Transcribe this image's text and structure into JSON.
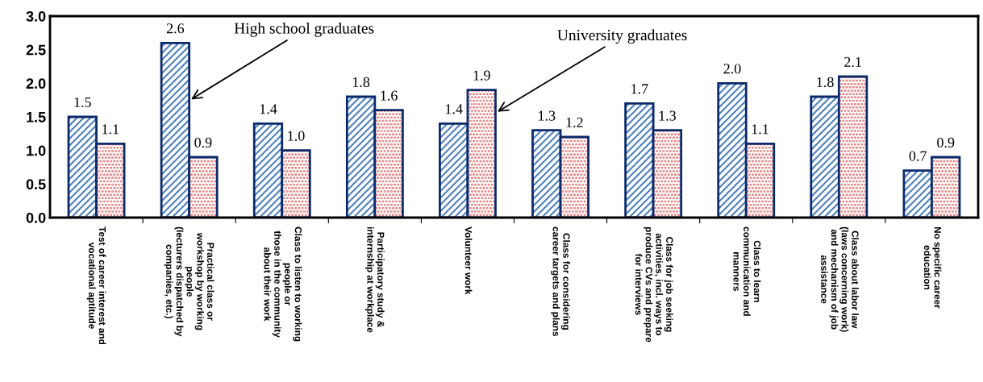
{
  "chart_data": {
    "type": "bar",
    "categories": [
      "Test of career interest and\nvocational aptitude",
      "Practical class or\nworkshop by working\npeople\n(lecturers dispatched by\ncompanies, etc.)",
      "Class to listen to working\npeople or\nthose in the community\nabout their work",
      "Participatory study &\ninternship at workplace",
      "Volunteer work",
      "Class for considering\ncareer targets and plans",
      "Class for job seeking\nactivities, incl. ways to\nproduce CVs and prepare\nfor interviews",
      "Class to learn\ncommunication and\nmanners",
      "Class about labor law\n(laws concerning work)\nand mechanism of job\nassistance",
      "No specific career\neducation"
    ],
    "series": [
      {
        "name": "High school graduates",
        "color": "#4f81bd",
        "values": [
          1.5,
          2.6,
          1.4,
          1.8,
          1.4,
          1.3,
          1.7,
          2.0,
          1.8,
          0.7
        ],
        "value_labels": [
          "1.5",
          "2.6",
          "1.4",
          "1.8",
          "1.4",
          "1.3",
          "1.7",
          "2.0",
          "1.8",
          "0.7"
        ]
      },
      {
        "name": "University graduates",
        "color": "#e06666",
        "values": [
          1.1,
          0.9,
          1.0,
          1.6,
          1.9,
          1.2,
          1.3,
          1.1,
          2.1,
          0.9
        ],
        "value_labels": [
          "1.1",
          "0.9",
          "1.0",
          "1.6",
          "1.9",
          "1.2",
          "1.3",
          "1.1",
          "2.1",
          "0.9"
        ]
      }
    ],
    "ylim": [
      0,
      3
    ],
    "yticks": [
      {
        "value": 0,
        "label": "0.0"
      },
      {
        "value": 0.5,
        "label": "0.5"
      },
      {
        "value": 1,
        "label": "1.0"
      },
      {
        "value": 1.5,
        "label": "1.5"
      },
      {
        "value": 2,
        "label": "2.0"
      },
      {
        "value": 2.5,
        "label": "2.5"
      },
      {
        "value": 3,
        "label": "3.0"
      }
    ],
    "grid": false,
    "legend": false
  }
}
